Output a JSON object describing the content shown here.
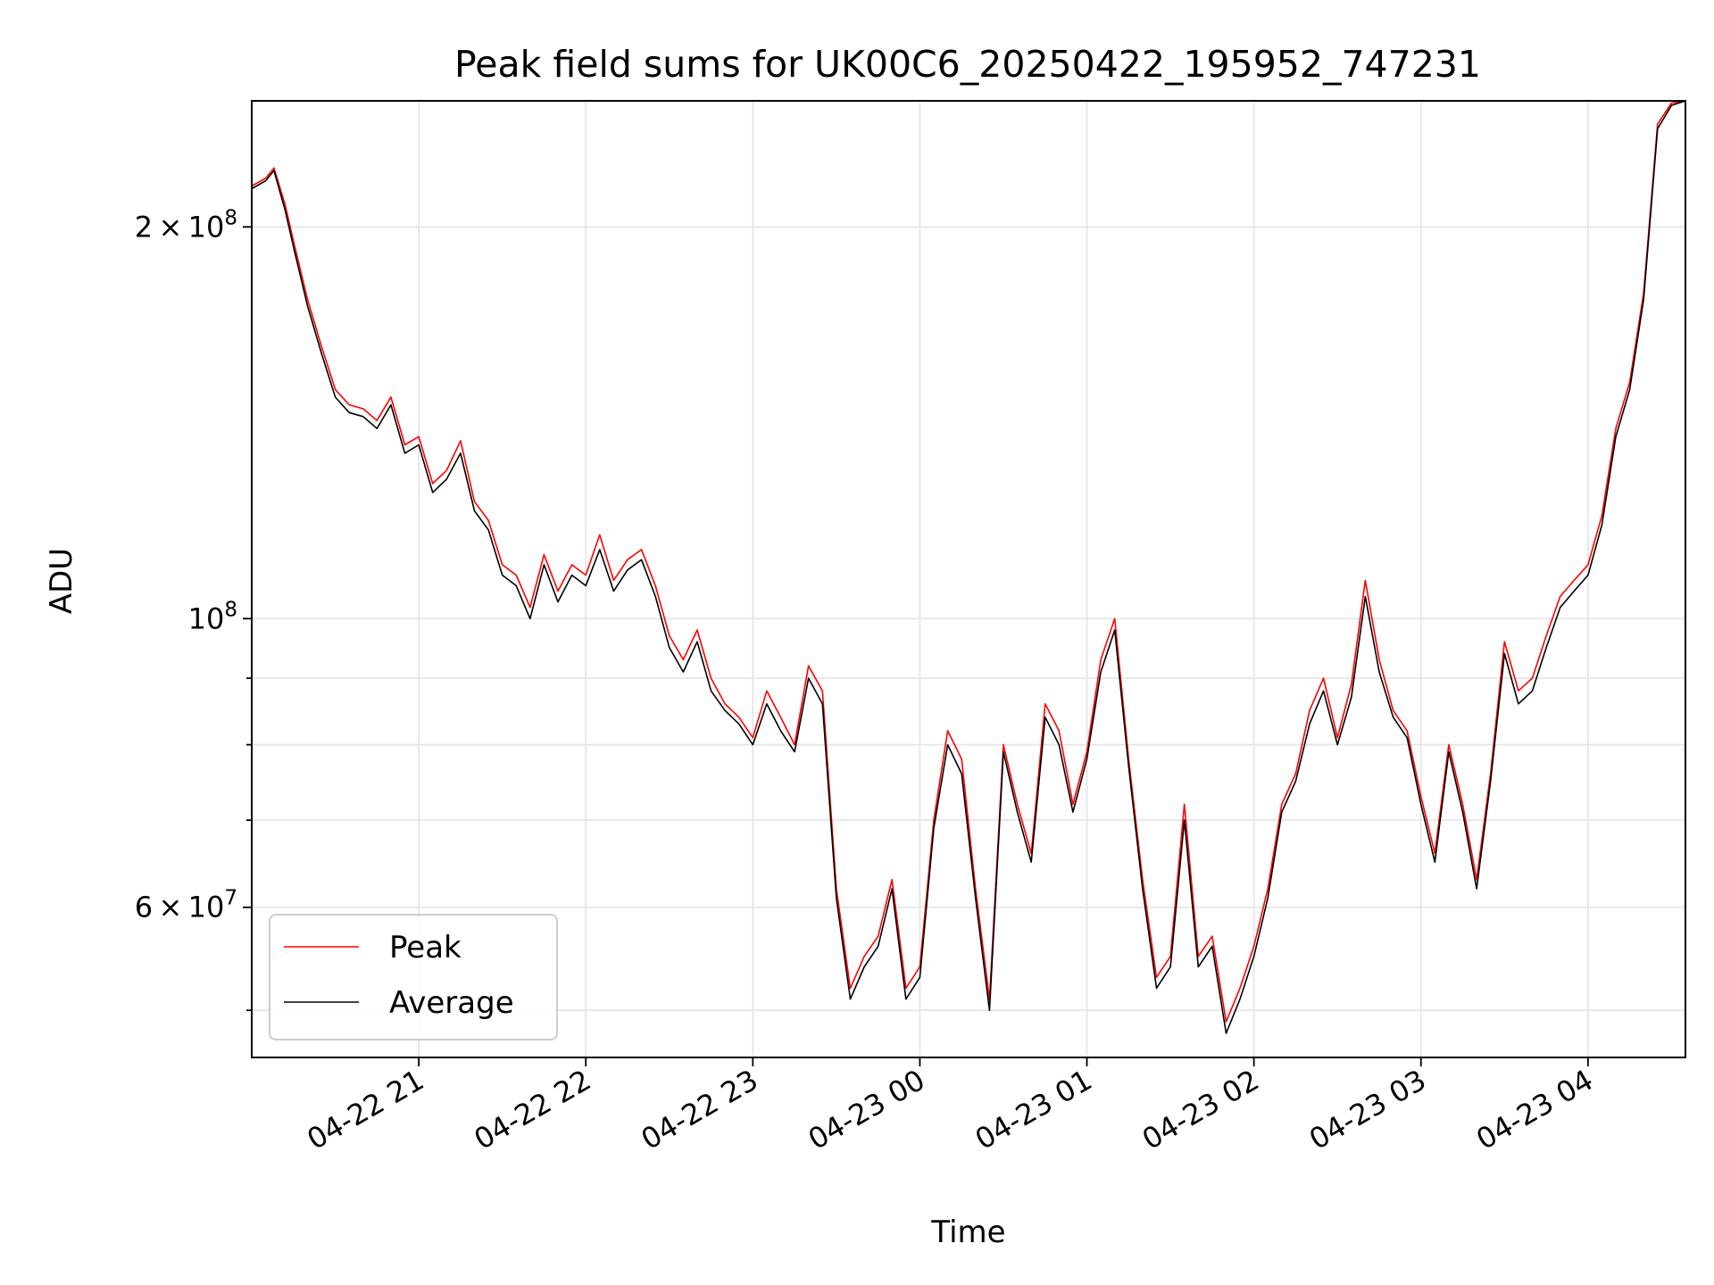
{
  "chart_data": {
    "type": "line",
    "title": "Peak field sums for UK00C6_20250422_195952_747231",
    "xlabel": "Time",
    "ylabel": "ADU",
    "yscale": "log",
    "xlim": [
      "2025-04-22 20:00",
      "2025-04-23 04:35"
    ],
    "ylim": [
      46000000,
      250000000
    ],
    "x_ticks": [
      "04-22 21",
      "04-22 22",
      "04-22 23",
      "04-23 00",
      "04-23 01",
      "04-23 02",
      "04-23 03",
      "04-23 04"
    ],
    "x_tick_times": [
      "2025-04-22 21:00",
      "2025-04-22 22:00",
      "2025-04-22 23:00",
      "2025-04-23 00:00",
      "2025-04-23 01:00",
      "2025-04-23 02:00",
      "2025-04-23 03:00",
      "2025-04-23 04:00"
    ],
    "y_major_ticks": [
      {
        "value": 60000000,
        "mantissa": "6",
        "exp": "7"
      },
      {
        "value": 100000000,
        "mantissa": "",
        "exp": "8"
      },
      {
        "value": 200000000,
        "mantissa": "2",
        "exp": "8"
      }
    ],
    "y_minor_ticks": [
      50000000,
      70000000,
      80000000,
      90000000
    ],
    "grid": true,
    "legend": "lower-left",
    "series": [
      {
        "name": "Peak",
        "color": "#ff0000",
        "x": [
          "2025-04-22 20:00",
          "2025-04-22 20:05",
          "2025-04-22 20:08",
          "2025-04-22 20:12",
          "2025-04-22 20:15",
          "2025-04-22 20:20",
          "2025-04-22 20:25",
          "2025-04-22 20:30",
          "2025-04-22 20:35",
          "2025-04-22 20:40",
          "2025-04-22 20:45",
          "2025-04-22 20:50",
          "2025-04-22 20:55",
          "2025-04-22 21:00",
          "2025-04-22 21:05",
          "2025-04-22 21:10",
          "2025-04-22 21:15",
          "2025-04-22 21:20",
          "2025-04-22 21:25",
          "2025-04-22 21:30",
          "2025-04-22 21:35",
          "2025-04-22 21:40",
          "2025-04-22 21:45",
          "2025-04-22 21:50",
          "2025-04-22 21:55",
          "2025-04-22 22:00",
          "2025-04-22 22:05",
          "2025-04-22 22:10",
          "2025-04-22 22:15",
          "2025-04-22 22:20",
          "2025-04-22 22:25",
          "2025-04-22 22:30",
          "2025-04-22 22:35",
          "2025-04-22 22:40",
          "2025-04-22 22:45",
          "2025-04-22 22:50",
          "2025-04-22 22:55",
          "2025-04-22 23:00",
          "2025-04-22 23:05",
          "2025-04-22 23:10",
          "2025-04-22 23:15",
          "2025-04-22 23:20",
          "2025-04-22 23:25",
          "2025-04-22 23:30",
          "2025-04-22 23:35",
          "2025-04-22 23:40",
          "2025-04-22 23:45",
          "2025-04-22 23:50",
          "2025-04-22 23:55",
          "2025-04-23 00:00",
          "2025-04-23 00:05",
          "2025-04-23 00:10",
          "2025-04-23 00:15",
          "2025-04-23 00:20",
          "2025-04-23 00:25",
          "2025-04-23 00:30",
          "2025-04-23 00:35",
          "2025-04-23 00:40",
          "2025-04-23 00:45",
          "2025-04-23 00:50",
          "2025-04-23 00:55",
          "2025-04-23 01:00",
          "2025-04-23 01:05",
          "2025-04-23 01:10",
          "2025-04-23 01:15",
          "2025-04-23 01:20",
          "2025-04-23 01:25",
          "2025-04-23 01:30",
          "2025-04-23 01:35",
          "2025-04-23 01:40",
          "2025-04-23 01:45",
          "2025-04-23 01:50",
          "2025-04-23 01:55",
          "2025-04-23 02:00",
          "2025-04-23 02:05",
          "2025-04-23 02:10",
          "2025-04-23 02:15",
          "2025-04-23 02:20",
          "2025-04-23 02:25",
          "2025-04-23 02:30",
          "2025-04-23 02:35",
          "2025-04-23 02:40",
          "2025-04-23 02:45",
          "2025-04-23 02:50",
          "2025-04-23 02:55",
          "2025-04-23 03:00",
          "2025-04-23 03:05",
          "2025-04-23 03:10",
          "2025-04-23 03:15",
          "2025-04-23 03:20",
          "2025-04-23 03:25",
          "2025-04-23 03:30",
          "2025-04-23 03:35",
          "2025-04-23 03:40",
          "2025-04-23 03:45",
          "2025-04-23 03:50",
          "2025-04-23 03:55",
          "2025-04-23 04:00",
          "2025-04-23 04:05",
          "2025-04-23 04:10",
          "2025-04-23 04:15",
          "2025-04-23 04:20",
          "2025-04-23 04:25",
          "2025-04-23 04:30",
          "2025-04-23 04:35"
        ],
        "values": [
          215000000,
          218000000,
          222000000,
          208000000,
          195000000,
          176000000,
          162000000,
          150000000,
          146000000,
          145000000,
          142000000,
          148000000,
          136000000,
          138000000,
          127000000,
          130000000,
          137000000,
          123000000,
          119000000,
          110000000,
          108000000,
          102000000,
          112000000,
          105000000,
          110000000,
          108000000,
          116000000,
          107000000,
          111000000,
          113000000,
          106000000,
          97000000,
          93000000,
          98000000,
          90000000,
          86000000,
          84000000,
          81000000,
          88000000,
          84000000,
          80000000,
          92000000,
          88000000,
          62000000,
          52000000,
          55000000,
          57000000,
          63000000,
          52000000,
          54000000,
          70000000,
          82000000,
          78000000,
          62000000,
          51000000,
          80000000,
          72000000,
          66000000,
          86000000,
          82000000,
          72000000,
          79000000,
          93000000,
          100000000,
          78000000,
          63000000,
          53000000,
          55000000,
          72000000,
          55000000,
          57000000,
          49000000,
          52000000,
          56000000,
          62000000,
          72000000,
          76000000,
          85000000,
          90000000,
          81000000,
          89000000,
          107000000,
          93000000,
          85000000,
          82000000,
          73000000,
          66000000,
          80000000,
          72000000,
          63000000,
          76000000,
          96000000,
          88000000,
          90000000,
          97000000,
          104000000,
          107000000,
          110000000,
          120000000,
          140000000,
          152000000,
          178000000,
          240000000,
          249000000,
          250000000
        ]
      },
      {
        "name": "Average",
        "color": "#000000",
        "x": [
          "2025-04-22 20:00",
          "2025-04-22 20:05",
          "2025-04-22 20:08",
          "2025-04-22 20:12",
          "2025-04-22 20:15",
          "2025-04-22 20:20",
          "2025-04-22 20:25",
          "2025-04-22 20:30",
          "2025-04-22 20:35",
          "2025-04-22 20:40",
          "2025-04-22 20:45",
          "2025-04-22 20:50",
          "2025-04-22 20:55",
          "2025-04-22 21:00",
          "2025-04-22 21:05",
          "2025-04-22 21:10",
          "2025-04-22 21:15",
          "2025-04-22 21:20",
          "2025-04-22 21:25",
          "2025-04-22 21:30",
          "2025-04-22 21:35",
          "2025-04-22 21:40",
          "2025-04-22 21:45",
          "2025-04-22 21:50",
          "2025-04-22 21:55",
          "2025-04-22 22:00",
          "2025-04-22 22:05",
          "2025-04-22 22:10",
          "2025-04-22 22:15",
          "2025-04-22 22:20",
          "2025-04-22 22:25",
          "2025-04-22 22:30",
          "2025-04-22 22:35",
          "2025-04-22 22:40",
          "2025-04-22 22:45",
          "2025-04-22 22:50",
          "2025-04-22 22:55",
          "2025-04-22 23:00",
          "2025-04-22 23:05",
          "2025-04-22 23:10",
          "2025-04-22 23:15",
          "2025-04-22 23:20",
          "2025-04-22 23:25",
          "2025-04-22 23:30",
          "2025-04-22 23:35",
          "2025-04-22 23:40",
          "2025-04-22 23:45",
          "2025-04-22 23:50",
          "2025-04-22 23:55",
          "2025-04-23 00:00",
          "2025-04-23 00:05",
          "2025-04-23 00:10",
          "2025-04-23 00:15",
          "2025-04-23 00:20",
          "2025-04-23 00:25",
          "2025-04-23 00:30",
          "2025-04-23 00:35",
          "2025-04-23 00:40",
          "2025-04-23 00:45",
          "2025-04-23 00:50",
          "2025-04-23 00:55",
          "2025-04-23 01:00",
          "2025-04-23 01:05",
          "2025-04-23 01:10",
          "2025-04-23 01:15",
          "2025-04-23 01:20",
          "2025-04-23 01:25",
          "2025-04-23 01:30",
          "2025-04-23 01:35",
          "2025-04-23 01:40",
          "2025-04-23 01:45",
          "2025-04-23 01:50",
          "2025-04-23 01:55",
          "2025-04-23 02:00",
          "2025-04-23 02:05",
          "2025-04-23 02:10",
          "2025-04-23 02:15",
          "2025-04-23 02:20",
          "2025-04-23 02:25",
          "2025-04-23 02:30",
          "2025-04-23 02:35",
          "2025-04-23 02:40",
          "2025-04-23 02:45",
          "2025-04-23 02:50",
          "2025-04-23 02:55",
          "2025-04-23 03:00",
          "2025-04-23 03:05",
          "2025-04-23 03:10",
          "2025-04-23 03:15",
          "2025-04-23 03:20",
          "2025-04-23 03:25",
          "2025-04-23 03:30",
          "2025-04-23 03:35",
          "2025-04-23 03:40",
          "2025-04-23 03:45",
          "2025-04-23 03:50",
          "2025-04-23 03:55",
          "2025-04-23 04:00",
          "2025-04-23 04:05",
          "2025-04-23 04:10",
          "2025-04-23 04:15",
          "2025-04-23 04:20",
          "2025-04-23 04:25",
          "2025-04-23 04:30",
          "2025-04-23 04:35"
        ],
        "values": [
          214000000,
          217000000,
          221000000,
          206000000,
          193000000,
          174000000,
          160000000,
          148000000,
          144000000,
          143000000,
          140000000,
          146000000,
          134000000,
          136000000,
          125000000,
          128000000,
          134000000,
          121000000,
          117000000,
          108000000,
          106000000,
          100000000,
          110000000,
          103000000,
          108000000,
          106000000,
          113000000,
          105000000,
          109000000,
          111000000,
          104000000,
          95000000,
          91000000,
          96000000,
          88000000,
          85000000,
          83000000,
          80000000,
          86000000,
          82000000,
          79000000,
          90000000,
          86000000,
          61000000,
          51000000,
          54000000,
          56000000,
          62000000,
          51000000,
          53000000,
          69000000,
          80000000,
          76000000,
          61000000,
          50000000,
          79000000,
          71000000,
          65000000,
          84000000,
          80000000,
          71000000,
          78000000,
          91000000,
          98000000,
          77000000,
          62000000,
          52000000,
          54000000,
          70000000,
          54000000,
          56000000,
          48000000,
          51000000,
          55000000,
          61000000,
          71000000,
          75000000,
          83000000,
          88000000,
          80000000,
          87000000,
          104000000,
          91000000,
          84000000,
          81000000,
          72000000,
          65000000,
          79000000,
          71000000,
          62000000,
          75000000,
          94000000,
          86000000,
          88000000,
          95000000,
          102000000,
          105000000,
          108000000,
          118000000,
          138000000,
          150000000,
          176000000,
          238000000,
          248000000,
          250000000
        ]
      }
    ]
  }
}
